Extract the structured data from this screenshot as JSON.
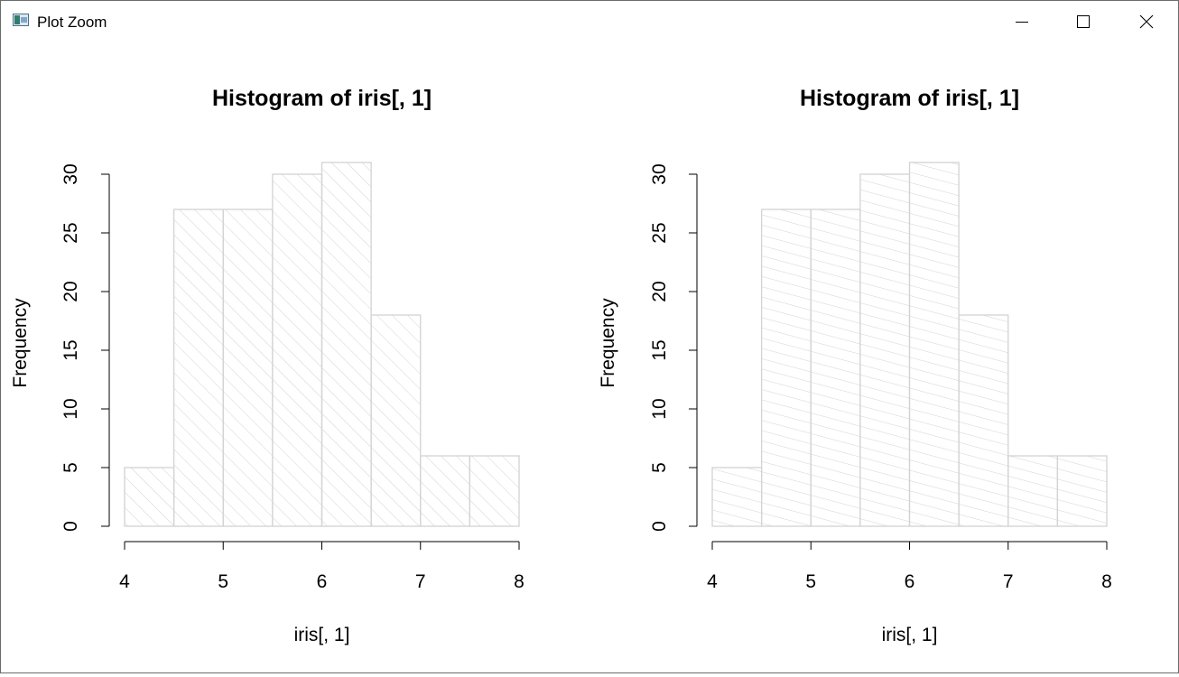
{
  "window": {
    "title": "Plot Zoom",
    "icons": {
      "app": "plot-zoom-app-icon",
      "minimize": "minimize-icon",
      "maximize": "maximize-icon",
      "close": "close-icon"
    }
  },
  "chart_data": [
    {
      "type": "bar",
      "histogram": true,
      "title": "Histogram of iris[, 1]",
      "xlabel": "iris[, 1]",
      "ylabel": "Frequency",
      "bins": [
        [
          4.0,
          4.5
        ],
        [
          4.5,
          5.0
        ],
        [
          5.0,
          5.5
        ],
        [
          5.5,
          6.0
        ],
        [
          6.0,
          6.5
        ],
        [
          6.5,
          7.0
        ],
        [
          7.0,
          7.5
        ],
        [
          7.5,
          8.0
        ]
      ],
      "values": [
        5,
        27,
        27,
        30,
        31,
        18,
        6,
        6
      ],
      "xlim": [
        4,
        8
      ],
      "ylim": [
        0,
        31
      ],
      "xticks": [
        4,
        5,
        6,
        7,
        8
      ],
      "yticks": [
        0,
        5,
        10,
        15,
        20,
        25,
        30
      ],
      "fill": "hatched",
      "hatch_angle": 45,
      "bar_color": "#d3d3d3",
      "grid": false
    },
    {
      "type": "bar",
      "histogram": true,
      "title": "Histogram of iris[, 1]",
      "xlabel": "iris[, 1]",
      "ylabel": "Frequency",
      "bins": [
        [
          4.0,
          4.5
        ],
        [
          4.5,
          5.0
        ],
        [
          5.0,
          5.5
        ],
        [
          5.5,
          6.0
        ],
        [
          6.0,
          6.5
        ],
        [
          6.5,
          7.0
        ],
        [
          7.0,
          7.5
        ],
        [
          7.5,
          8.0
        ]
      ],
      "values": [
        5,
        27,
        27,
        30,
        31,
        18,
        6,
        6
      ],
      "xlim": [
        4,
        8
      ],
      "ylim": [
        0,
        31
      ],
      "xticks": [
        4,
        5,
        6,
        7,
        8
      ],
      "yticks": [
        0,
        5,
        10,
        15,
        20,
        25,
        30
      ],
      "fill": "hatched",
      "hatch_angle": 75,
      "bar_color": "#d3d3d3",
      "grid": false
    }
  ]
}
